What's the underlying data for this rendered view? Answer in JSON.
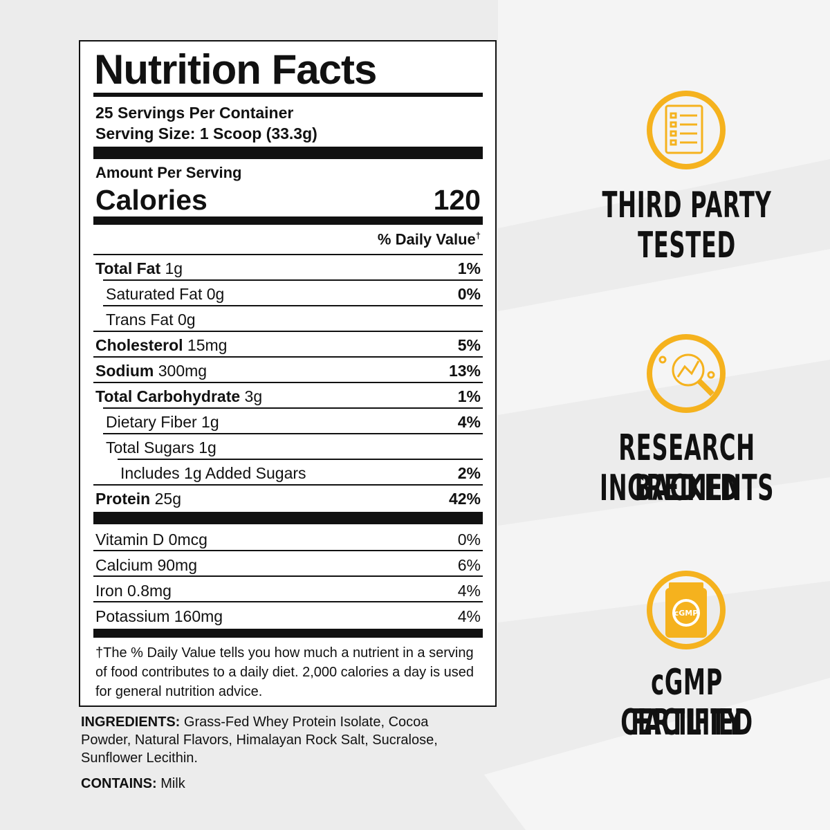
{
  "label": {
    "title": "Nutrition Facts",
    "servings": "25 Servings Per Container",
    "serving_size": "Serving Size: 1 Scoop (33.3g)",
    "amount_per_serving": "Amount Per Serving",
    "calories_label": "Calories",
    "calories": "120",
    "daily_value": "% Daily Value",
    "dagger": "†",
    "nutrients": [
      {
        "name": "Total Fat",
        "amount": "1g",
        "dv": "1%",
        "sub": [
          {
            "name": "Saturated Fat 0g",
            "dv": "0%"
          },
          {
            "name": "Trans Fat 0g"
          }
        ]
      },
      {
        "name": "Cholesterol",
        "amount": "15mg",
        "dv": "5%"
      },
      {
        "name": "Sodium",
        "amount": "300mg",
        "dv": "13%"
      },
      {
        "name": "Total Carbohydrate",
        "amount": "3g",
        "dv": "1%",
        "sub": [
          {
            "name": "Dietary Fiber 1g",
            "dv": "4%"
          },
          {
            "name": "Total Sugars 1g",
            "sub": [
              {
                "name": "Includes 1g Added Sugars",
                "dv": "2%"
              }
            ]
          }
        ]
      },
      {
        "name": "Protein",
        "amount": "25g",
        "dv": "42%"
      }
    ],
    "vitamins": [
      {
        "name": "Vitamin D 0mcg",
        "dv": "0%"
      },
      {
        "name": "Calcium 90mg",
        "dv": "6%"
      },
      {
        "name": "Iron 0.8mg",
        "dv": "4%"
      },
      {
        "name": "Potassium 160mg",
        "dv": "4%"
      }
    ],
    "footnote": "†The % Daily Value tells you how much a nutrient in a serving of food contributes to a daily diet. 2,000 calories a day is used for general nutrition advice."
  },
  "ingredients": {
    "label": "INGREDIENTS:",
    "text": "Grass-Fed Whey Protein Isolate, Cocoa Powder, Natural Flavors, Himalayan Rock Salt, Sucralose, Sunflower Lecithin."
  },
  "contains": {
    "label": "CONTAINS:",
    "text": "Milk"
  },
  "badges": [
    {
      "lines": [
        "THIRD PARTY",
        "TESTED"
      ]
    },
    {
      "lines": [
        "RESEARCH BACKED",
        "INGREDIENTS"
      ]
    },
    {
      "lines": [
        "cGMP CERTIFIED",
        "FACILITY"
      ],
      "icon_text": "cGMP"
    }
  ]
}
